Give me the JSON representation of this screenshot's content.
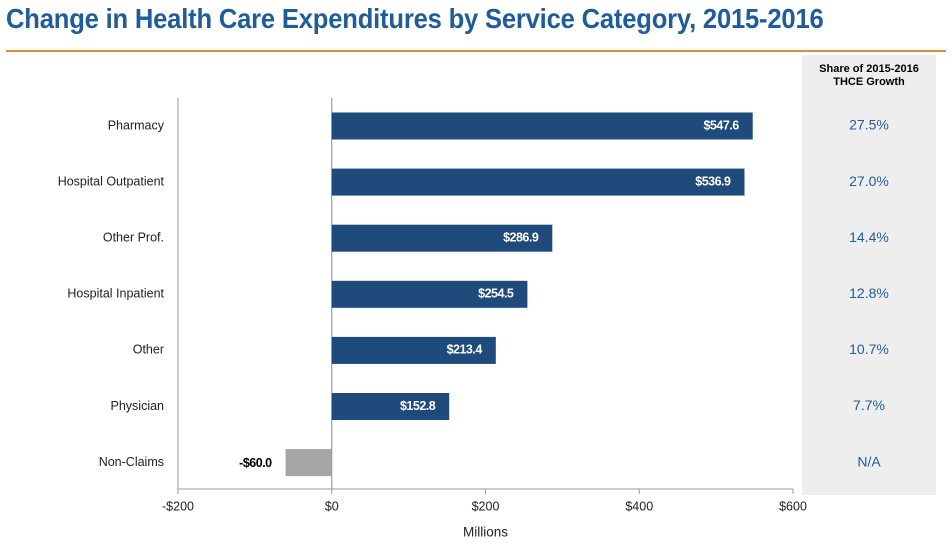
{
  "title": "Change in Health Care Expenditures by Service Category, 2015-2016",
  "share_column": {
    "header_line1": "Share of 2015-2016",
    "header_line2": "THCE Growth",
    "values": [
      "27.5%",
      "27.0%",
      "14.4%",
      "12.8%",
      "10.7%",
      "7.7%",
      "N/A"
    ]
  },
  "colors": {
    "title": "#1f5c99",
    "rule": "#e58a3c",
    "bar_positive": "#1f4a7c",
    "bar_negative": "#a6a6a6",
    "share_text": "#1f5c99",
    "panel": "#eeeeee"
  },
  "chart_data": {
    "type": "bar",
    "orientation": "horizontal",
    "categories": [
      "Pharmacy",
      "Hospital Outpatient",
      "Other Prof.",
      "Hospital Inpatient",
      "Other",
      "Physician",
      "Non-Claims"
    ],
    "values": [
      547.6,
      536.9,
      286.9,
      254.5,
      213.4,
      152.8,
      -60.0
    ],
    "data_labels": [
      "$547.6",
      "$536.9",
      "$286.9",
      "$254.5",
      "$213.4",
      "$152.8",
      "-$60.0"
    ],
    "xlabel": "Millions",
    "ylabel": "",
    "xlim": [
      -200,
      600
    ],
    "xticks": [
      -200,
      0,
      200,
      400,
      600
    ],
    "xtick_labels": [
      "-$200",
      "$0",
      "$200",
      "$400",
      "$600"
    ],
    "grid": false,
    "legend": "none"
  }
}
